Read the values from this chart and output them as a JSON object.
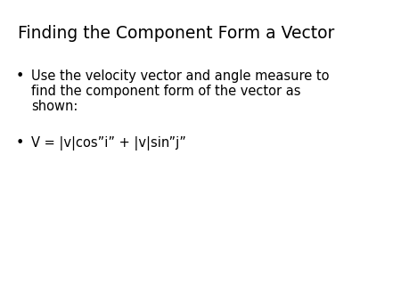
{
  "title": "Finding the Component Form a Vector",
  "bullet1_line1": "Use the velocity vector and angle measure to",
  "bullet1_line2": "find the component form of the vector as",
  "bullet1_line3": "shown:",
  "bullet2": "V = ∣v∣cos“i” + ∣v∣sin“j”",
  "bullet2_raw": "V = |v|cos”i” + |v|sin”j”",
  "background_color": "#ffffff",
  "text_color": "#000000",
  "title_fontsize": 13.5,
  "body_fontsize": 10.5,
  "font_family": "DejaVu Sans"
}
